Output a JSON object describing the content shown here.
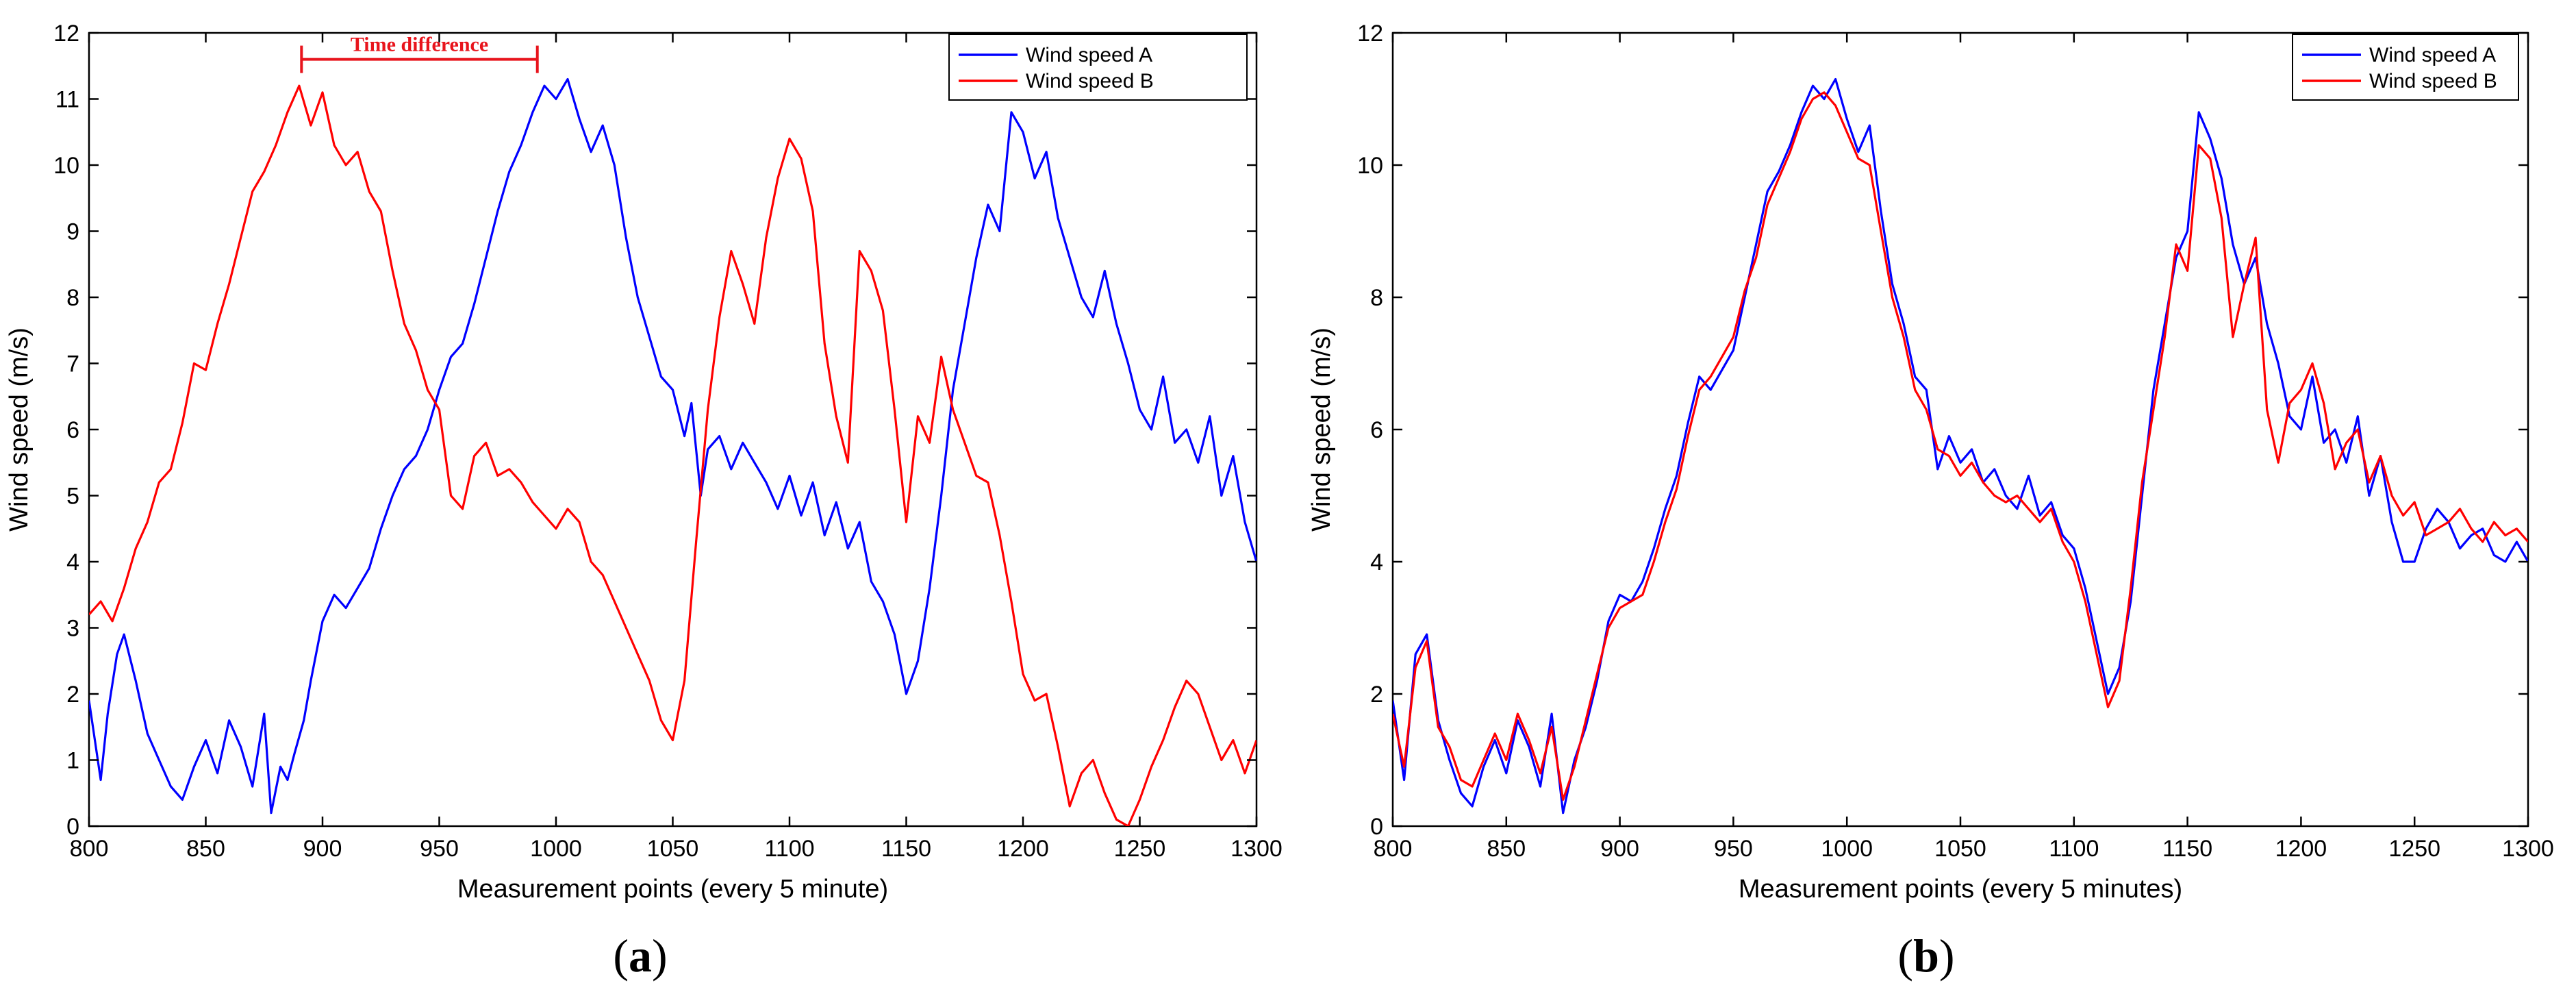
{
  "colors": {
    "series_a": "#0000ff",
    "series_b": "#ff0000",
    "axes": "#000000",
    "annotation": "#e8141c"
  },
  "panels": [
    {
      "label_open": "(",
      "label_letter": "a",
      "label_close": ")"
    },
    {
      "label_open": "(",
      "label_letter": "b",
      "label_close": ")"
    }
  ],
  "chart_data": [
    {
      "type": "line",
      "title": "",
      "xlabel": "Measurement points (every 5 minute)",
      "ylabel": "Wind speed (m/s)",
      "xlim": [
        800,
        1300
      ],
      "ylim": [
        0,
        12
      ],
      "xticks": [
        800,
        850,
        900,
        950,
        1000,
        1050,
        1100,
        1150,
        1200,
        1250,
        1300
      ],
      "yticks": [
        0,
        1,
        2,
        3,
        4,
        5,
        6,
        7,
        8,
        9,
        10,
        11,
        12
      ],
      "grid": false,
      "legend_position": "top-right",
      "annotation": {
        "text": "Time difference",
        "x_start": 891,
        "x_end": 992,
        "y": 11.6
      },
      "series": [
        {
          "name": "Wind speed A",
          "color": "#0000ff",
          "x": [
            800,
            805,
            808,
            812,
            815,
            820,
            825,
            830,
            835,
            840,
            845,
            850,
            855,
            860,
            865,
            870,
            875,
            878,
            882,
            885,
            888,
            892,
            895,
            900,
            905,
            910,
            915,
            920,
            925,
            930,
            935,
            940,
            945,
            950,
            955,
            960,
            965,
            970,
            975,
            980,
            985,
            990,
            995,
            1000,
            1005,
            1010,
            1015,
            1020,
            1025,
            1030,
            1035,
            1040,
            1045,
            1050,
            1055,
            1058,
            1062,
            1065,
            1070,
            1075,
            1080,
            1085,
            1090,
            1095,
            1100,
            1105,
            1110,
            1115,
            1120,
            1125,
            1130,
            1135,
            1140,
            1145,
            1150,
            1155,
            1160,
            1165,
            1170,
            1175,
            1180,
            1185,
            1190,
            1195,
            1200,
            1205,
            1210,
            1215,
            1220,
            1225,
            1230,
            1235,
            1240,
            1245,
            1250,
            1255,
            1260,
            1265,
            1270,
            1275,
            1280,
            1285,
            1290,
            1295,
            1300
          ],
          "values": [
            1.9,
            0.7,
            1.7,
            2.6,
            2.9,
            2.2,
            1.4,
            1.0,
            0.6,
            0.4,
            0.9,
            1.3,
            0.8,
            1.6,
            1.2,
            0.6,
            1.7,
            0.2,
            0.9,
            0.7,
            1.1,
            1.6,
            2.2,
            3.1,
            3.5,
            3.3,
            3.6,
            3.9,
            4.5,
            5.0,
            5.4,
            5.6,
            6.0,
            6.6,
            7.1,
            7.3,
            7.9,
            8.6,
            9.3,
            9.9,
            10.3,
            10.8,
            11.2,
            11.0,
            11.3,
            10.7,
            10.2,
            10.6,
            10.0,
            8.9,
            8.0,
            7.4,
            6.8,
            6.6,
            5.9,
            6.4,
            5.0,
            5.7,
            5.9,
            5.4,
            5.8,
            5.5,
            5.2,
            4.8,
            5.3,
            4.7,
            5.2,
            4.4,
            4.9,
            4.2,
            4.6,
            3.7,
            3.4,
            2.9,
            2.0,
            2.5,
            3.6,
            5.0,
            6.6,
            7.6,
            8.6,
            9.4,
            9.0,
            10.8,
            10.5,
            9.8,
            10.2,
            9.2,
            8.6,
            8.0,
            7.7,
            8.4,
            7.6,
            7.0,
            6.3,
            6.0,
            6.8,
            5.8,
            6.0,
            5.5,
            6.2,
            5.0,
            5.6,
            4.6,
            4.0
          ]
        },
        {
          "name": "Wind speed B",
          "color": "#ff0000",
          "x": [
            800,
            805,
            810,
            815,
            820,
            825,
            830,
            835,
            840,
            845,
            850,
            855,
            860,
            865,
            870,
            875,
            880,
            885,
            890,
            895,
            900,
            905,
            910,
            915,
            920,
            925,
            930,
            935,
            940,
            945,
            950,
            955,
            960,
            965,
            970,
            975,
            980,
            985,
            990,
            995,
            1000,
            1005,
            1010,
            1015,
            1020,
            1025,
            1030,
            1035,
            1040,
            1045,
            1050,
            1055,
            1060,
            1065,
            1070,
            1075,
            1080,
            1085,
            1090,
            1095,
            1100,
            1105,
            1110,
            1115,
            1120,
            1125,
            1130,
            1135,
            1140,
            1145,
            1150,
            1155,
            1160,
            1165,
            1170,
            1175,
            1180,
            1185,
            1190,
            1195,
            1200,
            1205,
            1210,
            1215,
            1220,
            1225,
            1230,
            1235,
            1240,
            1245,
            1250,
            1255,
            1260,
            1265,
            1270,
            1275,
            1280,
            1285,
            1290,
            1295,
            1300
          ],
          "values": [
            3.2,
            3.4,
            3.1,
            3.6,
            4.2,
            4.6,
            5.2,
            5.4,
            6.1,
            7.0,
            6.9,
            7.6,
            8.2,
            8.9,
            9.6,
            9.9,
            10.3,
            10.8,
            11.2,
            10.6,
            11.1,
            10.3,
            10.0,
            10.2,
            9.6,
            9.3,
            8.4,
            7.6,
            7.2,
            6.6,
            6.3,
            5.0,
            4.8,
            5.6,
            5.8,
            5.3,
            5.4,
            5.2,
            4.9,
            4.7,
            4.5,
            4.8,
            4.6,
            4.0,
            3.8,
            3.4,
            3.0,
            2.6,
            2.2,
            1.6,
            1.3,
            2.2,
            4.3,
            6.3,
            7.7,
            8.7,
            8.2,
            7.6,
            8.9,
            9.8,
            10.4,
            10.1,
            9.3,
            7.3,
            6.2,
            5.5,
            8.7,
            8.4,
            7.8,
            6.3,
            4.6,
            6.2,
            5.8,
            7.1,
            6.3,
            5.8,
            5.3,
            5.2,
            4.4,
            3.4,
            2.3,
            1.9,
            2.0,
            1.2,
            0.3,
            0.8,
            1.0,
            0.5,
            0.1,
            0.0,
            0.4,
            0.9,
            1.3,
            1.8,
            2.2,
            2.0,
            1.5,
            1.0,
            1.3,
            0.8,
            1.3
          ]
        }
      ]
    },
    {
      "type": "line",
      "title": "",
      "xlabel": "Measurement points (every 5 minutes)",
      "ylabel": "Wind speed (m/s)",
      "xlim": [
        800,
        1300
      ],
      "ylim": [
        0,
        12
      ],
      "xticks": [
        800,
        850,
        900,
        950,
        1000,
        1050,
        1100,
        1150,
        1200,
        1250,
        1300
      ],
      "yticks": [
        0,
        2,
        4,
        6,
        8,
        10,
        12
      ],
      "grid": false,
      "legend_position": "top-right",
      "series": [
        {
          "name": "Wind speed A",
          "color": "#0000ff",
          "x": [
            800,
            805,
            810,
            815,
            820,
            825,
            830,
            835,
            840,
            845,
            850,
            855,
            860,
            865,
            870,
            875,
            880,
            885,
            890,
            895,
            900,
            905,
            910,
            915,
            920,
            925,
            930,
            935,
            940,
            945,
            950,
            955,
            960,
            965,
            970,
            975,
            980,
            985,
            990,
            995,
            1000,
            1005,
            1010,
            1015,
            1020,
            1025,
            1030,
            1035,
            1040,
            1045,
            1050,
            1055,
            1060,
            1065,
            1070,
            1075,
            1080,
            1085,
            1090,
            1095,
            1100,
            1105,
            1110,
            1115,
            1120,
            1125,
            1130,
            1135,
            1140,
            1145,
            1150,
            1155,
            1160,
            1165,
            1170,
            1175,
            1180,
            1185,
            1190,
            1195,
            1200,
            1205,
            1210,
            1215,
            1220,
            1225,
            1230,
            1235,
            1240,
            1245,
            1250,
            1255,
            1260,
            1265,
            1270,
            1275,
            1280,
            1285,
            1290,
            1295,
            1300
          ],
          "values": [
            1.9,
            0.7,
            2.6,
            2.9,
            1.6,
            1.0,
            0.5,
            0.3,
            0.9,
            1.3,
            0.8,
            1.6,
            1.2,
            0.6,
            1.7,
            0.2,
            1.0,
            1.5,
            2.2,
            3.1,
            3.5,
            3.4,
            3.7,
            4.2,
            4.8,
            5.3,
            6.1,
            6.8,
            6.6,
            6.9,
            7.2,
            8.0,
            8.8,
            9.6,
            9.9,
            10.3,
            10.8,
            11.2,
            11.0,
            11.3,
            10.7,
            10.2,
            10.6,
            9.3,
            8.2,
            7.6,
            6.8,
            6.6,
            5.4,
            5.9,
            5.5,
            5.7,
            5.2,
            5.4,
            5.0,
            4.8,
            5.3,
            4.7,
            4.9,
            4.4,
            4.2,
            3.6,
            2.8,
            2.0,
            2.4,
            3.4,
            5.0,
            6.6,
            7.6,
            8.6,
            9.0,
            10.8,
            10.4,
            9.8,
            8.8,
            8.2,
            8.6,
            7.6,
            7.0,
            6.2,
            6.0,
            6.8,
            5.8,
            6.0,
            5.5,
            6.2,
            5.0,
            5.6,
            4.6,
            4.0,
            4.0,
            4.5,
            4.8,
            4.6,
            4.2,
            4.4,
            4.5,
            4.1,
            4.0,
            4.3,
            4.0
          ]
        },
        {
          "name": "Wind speed B",
          "color": "#ff0000",
          "x": [
            800,
            805,
            810,
            815,
            820,
            825,
            830,
            835,
            840,
            845,
            850,
            855,
            860,
            865,
            870,
            875,
            880,
            885,
            890,
            895,
            900,
            905,
            910,
            915,
            920,
            925,
            930,
            935,
            940,
            945,
            950,
            955,
            960,
            965,
            970,
            975,
            980,
            985,
            990,
            995,
            1000,
            1005,
            1010,
            1015,
            1020,
            1025,
            1030,
            1035,
            1040,
            1045,
            1050,
            1055,
            1060,
            1065,
            1070,
            1075,
            1080,
            1085,
            1090,
            1095,
            1100,
            1105,
            1110,
            1115,
            1120,
            1125,
            1130,
            1135,
            1140,
            1145,
            1150,
            1155,
            1160,
            1165,
            1170,
            1175,
            1180,
            1185,
            1190,
            1195,
            1200,
            1205,
            1210,
            1215,
            1220,
            1225,
            1230,
            1235,
            1240,
            1245,
            1250,
            1255,
            1260,
            1265,
            1270,
            1275,
            1280,
            1285,
            1290,
            1295,
            1300
          ],
          "values": [
            1.7,
            0.9,
            2.4,
            2.8,
            1.5,
            1.2,
            0.7,
            0.6,
            1.0,
            1.4,
            1.0,
            1.7,
            1.3,
            0.8,
            1.5,
            0.4,
            0.9,
            1.6,
            2.3,
            3.0,
            3.3,
            3.4,
            3.5,
            4.0,
            4.6,
            5.1,
            5.9,
            6.6,
            6.8,
            7.1,
            7.4,
            8.1,
            8.6,
            9.4,
            9.8,
            10.2,
            10.7,
            11.0,
            11.1,
            10.9,
            10.5,
            10.1,
            10.0,
            9.0,
            8.0,
            7.4,
            6.6,
            6.3,
            5.7,
            5.6,
            5.3,
            5.5,
            5.2,
            5.0,
            4.9,
            5.0,
            4.8,
            4.6,
            4.8,
            4.3,
            4.0,
            3.4,
            2.6,
            1.8,
            2.2,
            3.6,
            5.2,
            6.3,
            7.4,
            8.8,
            8.4,
            10.3,
            10.1,
            9.2,
            7.4,
            8.2,
            8.9,
            6.3,
            5.5,
            6.4,
            6.6,
            7.0,
            6.4,
            5.4,
            5.8,
            6.0,
            5.2,
            5.6,
            5.0,
            4.7,
            4.9,
            4.4,
            4.5,
            4.6,
            4.8,
            4.5,
            4.3,
            4.6,
            4.4,
            4.5,
            4.3
          ]
        }
      ]
    }
  ]
}
